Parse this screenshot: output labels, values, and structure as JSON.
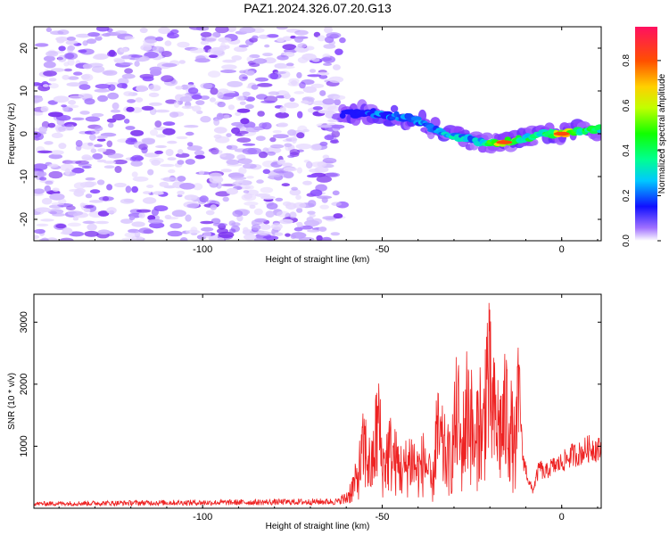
{
  "figure": {
    "title": "PAZ1.2024.326.07.20.G13"
  },
  "chart_data": [
    {
      "type": "heatmap",
      "xlabel": "Height of straight line (km)",
      "ylabel": "Frequency (Hz)",
      "xlim": [
        -147,
        11
      ],
      "ylim": [
        -25,
        25
      ],
      "x_ticks": [
        -100,
        -50,
        0
      ],
      "y_ticks": [
        -20,
        -10,
        0,
        10,
        20
      ],
      "colorbar": {
        "label": "Normalized spectral amplitude",
        "range": [
          0,
          0.95
        ],
        "ticks": [
          0.0,
          0.2,
          0.4,
          0.6,
          0.8
        ]
      },
      "noise_region": {
        "x_range": [
          -147,
          -61
        ],
        "freq_range": [
          -25,
          25
        ],
        "amplitude": 0.05
      },
      "signal_ridge": [
        {
          "x": -61,
          "freq": 4.5,
          "amp": 0.15
        },
        {
          "x": -55,
          "freq": 5.0,
          "amp": 0.25
        },
        {
          "x": -50,
          "freq": 4.5,
          "amp": 0.3
        },
        {
          "x": -45,
          "freq": 4.0,
          "amp": 0.3
        },
        {
          "x": -40,
          "freq": 3.0,
          "amp": 0.35
        },
        {
          "x": -35,
          "freq": 1.0,
          "amp": 0.35
        },
        {
          "x": -30,
          "freq": -0.5,
          "amp": 0.4
        },
        {
          "x": -25,
          "freq": -1.5,
          "amp": 0.35
        },
        {
          "x": -20,
          "freq": -2.0,
          "amp": 0.5
        },
        {
          "x": -16,
          "freq": -2.0,
          "amp": 0.85
        },
        {
          "x": -10,
          "freq": -1.0,
          "amp": 0.5
        },
        {
          "x": -5,
          "freq": 0.0,
          "amp": 0.45
        },
        {
          "x": 0,
          "freq": 0.0,
          "amp": 0.85
        },
        {
          "x": 5,
          "freq": 0.5,
          "amp": 0.55
        },
        {
          "x": 11,
          "freq": 1.0,
          "amp": 0.5
        }
      ]
    },
    {
      "type": "line",
      "xlabel": "Height of straight line (km)",
      "ylabel": "SNR (10 * v/v)",
      "xlim": [
        -147,
        11
      ],
      "ylim": [
        0,
        3450
      ],
      "x_ticks": [
        -100,
        -50,
        0
      ],
      "y_ticks": [
        1000,
        2000,
        3000
      ],
      "series": [
        {
          "color": "#ee2222",
          "x": [
            -147,
            -140,
            -130,
            -120,
            -110,
            -100,
            -90,
            -80,
            -70,
            -62,
            -60,
            -57,
            -55,
            -53,
            -51,
            -50,
            -48,
            -46,
            -44,
            -42,
            -40,
            -38,
            -36,
            -35,
            -33,
            -31,
            -29,
            -28,
            -26,
            -24,
            -23,
            -22,
            -21,
            -19,
            -17,
            -15,
            -13,
            -12,
            -11,
            -10,
            -9,
            -8,
            -7,
            -6,
            -5,
            -4,
            -3,
            -1,
            1,
            3,
            5,
            7,
            9,
            11
          ],
          "y": [
            80,
            85,
            90,
            95,
            100,
            100,
            105,
            110,
            115,
            120,
            250,
            700,
            1500,
            900,
            2200,
            1000,
            1400,
            1100,
            900,
            1250,
            900,
            1200,
            450,
            1800,
            1400,
            1100,
            2400,
            1300,
            2700,
            1200,
            2500,
            1500,
            3400,
            2200,
            1900,
            2400,
            1300,
            2500,
            900,
            650,
            400,
            300,
            520,
            700,
            560,
            620,
            680,
            720,
            800,
            880,
            900,
            980,
            1000,
            950
          ]
        }
      ]
    }
  ]
}
